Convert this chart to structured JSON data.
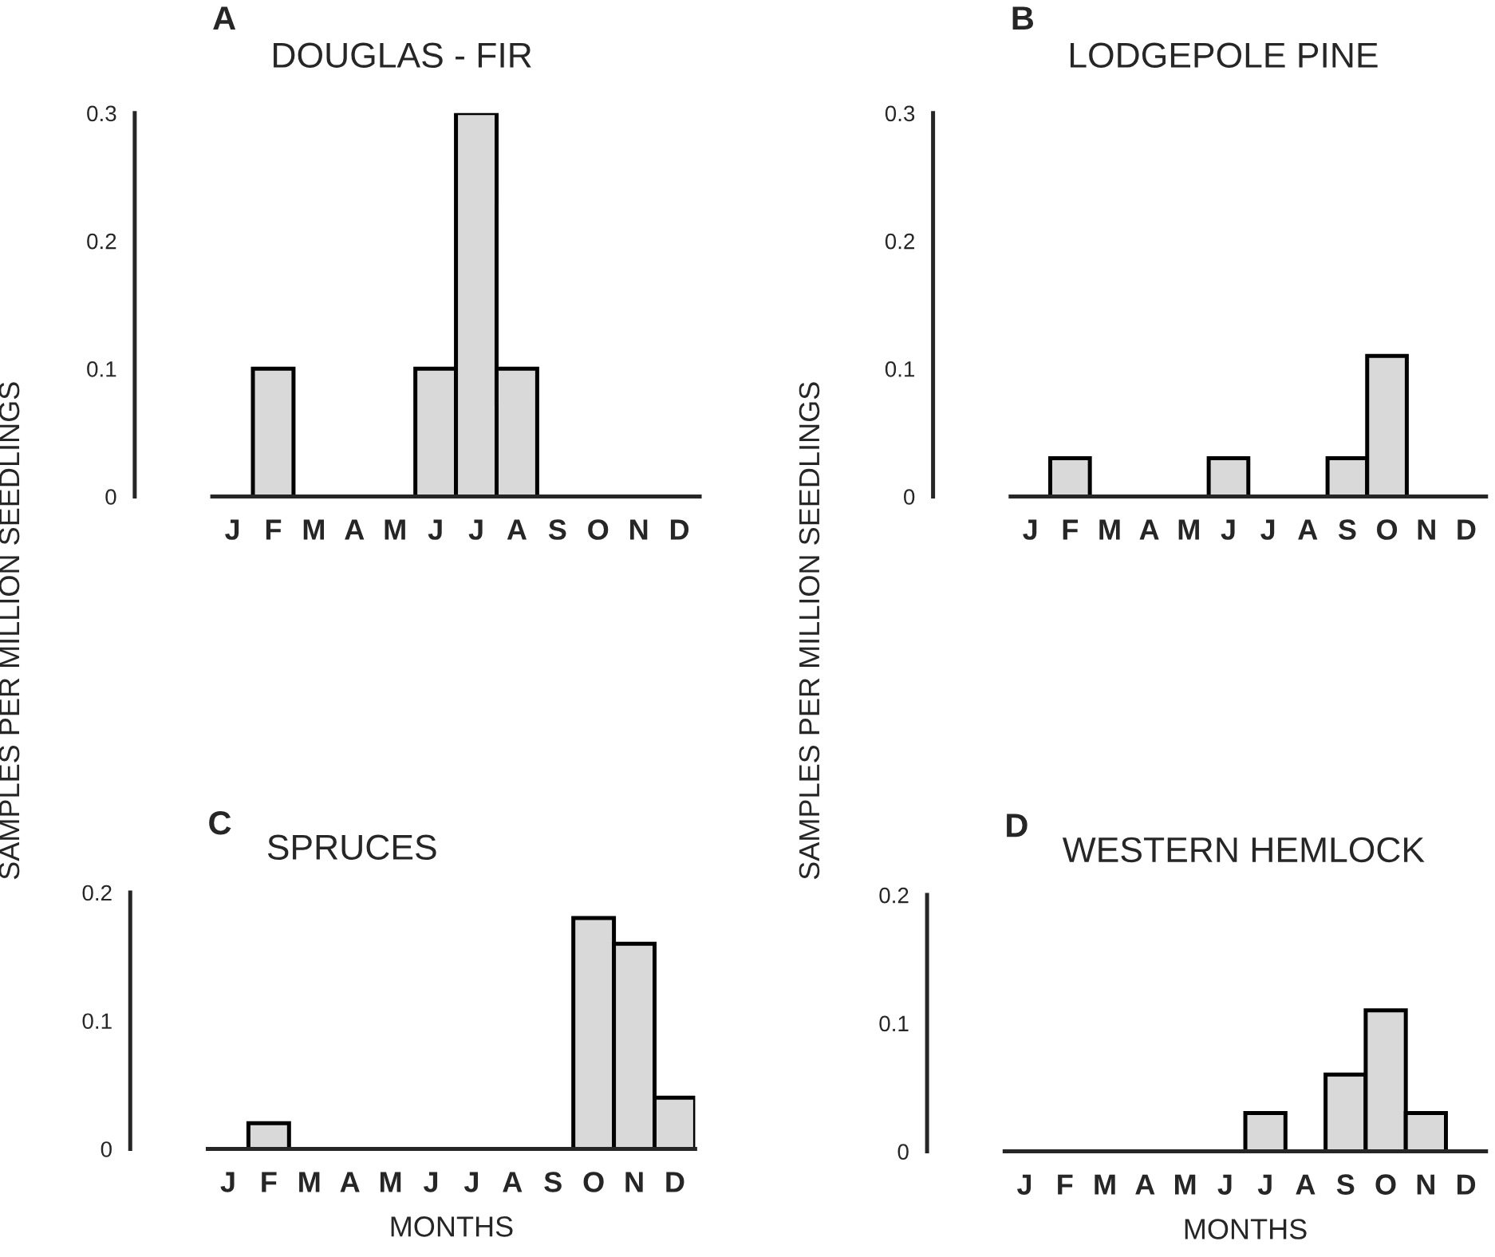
{
  "chart_data": [
    {
      "type": "bar",
      "title": "DOUGLAS - FIR",
      "annotations": [
        "A"
      ],
      "ylabel": "SAMPLES PER MILLION SEEDLINGS",
      "categories": [
        "J",
        "F",
        "M",
        "A",
        "M",
        "J",
        "J",
        "A",
        "S",
        "O",
        "N",
        "D"
      ],
      "values": [
        0,
        0.1,
        0,
        0,
        0,
        0.1,
        0.3,
        0.1,
        0,
        0,
        0,
        0
      ],
      "color": "#d9d9d9",
      "ylim": [
        0,
        0.3
      ],
      "yticks": [
        0,
        0.1,
        0.2,
        0.3
      ]
    },
    {
      "type": "bar",
      "title": "LODGEPOLE PINE",
      "annotations": [
        "B"
      ],
      "ylabel": "SAMPLES PER MILLION SEEDLINGS",
      "categories": [
        "J",
        "F",
        "M",
        "A",
        "M",
        "J",
        "J",
        "A",
        "S",
        "O",
        "N",
        "D"
      ],
      "values": [
        0,
        0.03,
        0,
        0,
        0,
        0.03,
        0,
        0,
        0.03,
        0.11,
        0,
        0
      ],
      "color": "#d9d9d9",
      "ylim": [
        0,
        0.3
      ],
      "yticks": [
        0,
        0.1,
        0.2,
        0.3
      ]
    },
    {
      "type": "bar",
      "title": "SPRUCES",
      "annotations": [
        "C"
      ],
      "xlabel": "MONTHS",
      "categories": [
        "J",
        "F",
        "M",
        "A",
        "M",
        "J",
        "J",
        "A",
        "S",
        "O",
        "N",
        "D"
      ],
      "values": [
        0,
        0.02,
        0,
        0,
        0,
        0,
        0,
        0,
        0,
        0.18,
        0.16,
        0.04
      ],
      "color": "#d9d9d9",
      "ylim": [
        0,
        0.2
      ],
      "yticks": [
        0,
        0.1,
        0.2
      ]
    },
    {
      "type": "bar",
      "title": "WESTERN HEMLOCK",
      "annotations": [
        "D"
      ],
      "xlabel": "MONTHS",
      "categories": [
        "J",
        "F",
        "M",
        "A",
        "M",
        "J",
        "J",
        "A",
        "S",
        "O",
        "N",
        "D"
      ],
      "values": [
        0,
        0,
        0,
        0,
        0,
        0,
        0.03,
        0,
        0.06,
        0.11,
        0.03,
        0
      ],
      "color": "#d9d9d9",
      "ylim": [
        0,
        0.2
      ],
      "yticks": [
        0,
        0.1,
        0.2
      ]
    }
  ]
}
